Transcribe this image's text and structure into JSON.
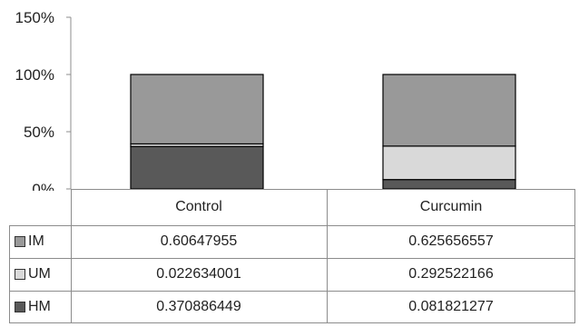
{
  "chart_data": {
    "type": "bar",
    "stacked": true,
    "normalized": true,
    "categories": [
      "Control",
      "Curcumin"
    ],
    "ylim": [
      0,
      150
    ],
    "yticks": [
      "0%",
      "50%",
      "100%",
      "150%"
    ],
    "grid": false,
    "legend": "data-table",
    "series": [
      {
        "name": "HM",
        "values": [
          0.370886449,
          0.081821277
        ],
        "labels": [
          "0.370886449",
          "0.081821277"
        ],
        "color": "#595959"
      },
      {
        "name": "UM",
        "values": [
          0.022634001,
          0.292522166
        ],
        "labels": [
          "0.022634001",
          "0.292522166"
        ],
        "color": "#d9d9d9"
      },
      {
        "name": "IM",
        "values": [
          0.60647955,
          0.625656557
        ],
        "labels": [
          "0.60647955",
          "0.625656557"
        ],
        "color": "#999999"
      }
    ]
  }
}
